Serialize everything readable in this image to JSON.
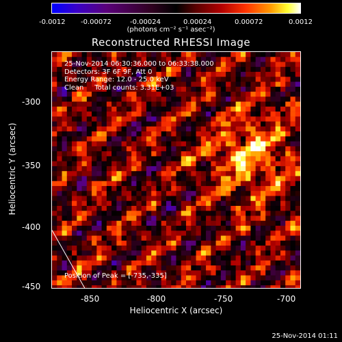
{
  "title": "Reconstructed RHESSI Image",
  "colorbar": {
    "ticks": [
      "-0.0012",
      "-0.00072",
      "-0.00024",
      "0.00024",
      "0.00072",
      "0.0012"
    ],
    "unit": "(photons cm⁻² s⁻¹ asec⁻²)",
    "range": [
      -0.0012,
      0.0012
    ]
  },
  "annotation": {
    "time_range": "25-Nov-2014 06:30:36.000 to 06:33:38.000",
    "detectors": "Detectors: 3F 6F 9F, Att 0",
    "energy_range": "Energy Range: 12.0 - 25.0 keV",
    "method": "Clean     Total counts: 3.31E+03",
    "peak": "Position of Peak = [-735,-335]"
  },
  "axes": {
    "xlabel": "Heliocentric X (arcsec)",
    "ylabel": "Heliocentric Y (arcsec)",
    "xticks": [
      "-850",
      "-800",
      "-750",
      "-700"
    ],
    "yticks": [
      "-300",
      "-350",
      "-400",
      "-450"
    ],
    "xlim": [
      -880,
      -695
    ],
    "ylim": [
      -450,
      -275
    ]
  },
  "timestamp": "25-Nov-2014 01:11",
  "chart_data": {
    "type": "heatmap",
    "title": "Reconstructed RHESSI Image",
    "xlabel": "Heliocentric X (arcsec)",
    "ylabel": "Heliocentric Y (arcsec)",
    "xlim": [
      -880,
      -695
    ],
    "ylim": [
      -450,
      -275
    ],
    "peak": [
      -735,
      -335
    ],
    "value_range": [
      -0.0012,
      0.0012
    ]
  }
}
